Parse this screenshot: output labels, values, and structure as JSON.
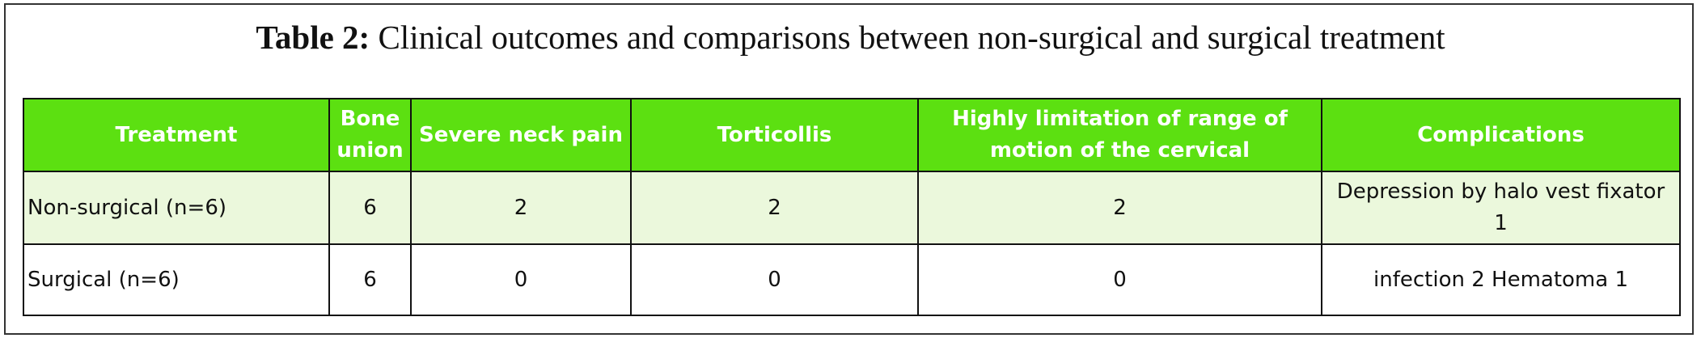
{
  "caption": {
    "label": "Table 2:",
    "text": "Clinical outcomes and comparisons between non-surgical and surgical treatment"
  },
  "table": {
    "columns": [
      "Treatment",
      "Bone union",
      "Severe neck pain",
      "Torticollis",
      "Highly limitation of range of motion of the cervical",
      "Complications"
    ],
    "rows": [
      [
        "Non-surgical (n=6)",
        "6",
        "2",
        "2",
        "2",
        "Depression by halo vest fixator 1"
      ],
      [
        "Surgical (n=6)",
        "6",
        "0",
        "0",
        "0",
        "infection 2 Hematoma 1"
      ]
    ]
  }
}
